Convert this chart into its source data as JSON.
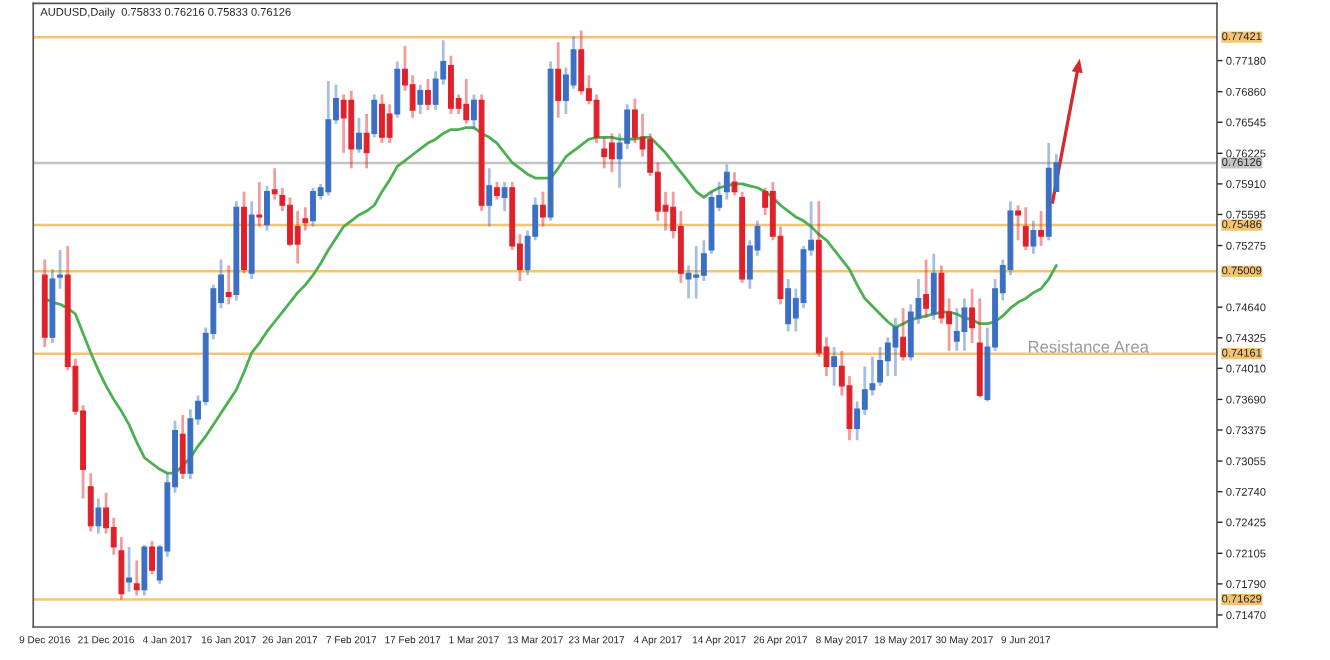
{
  "chart_data": {
    "type": "candlestick",
    "title": "AUDUSD,Daily  0.75833 0.76216 0.75833 0.76126",
    "annotations": [
      "Resistance Area"
    ],
    "categories": [
      "9 Dec 2016",
      null,
      null,
      null,
      null,
      null,
      null,
      null,
      "21 Dec 2016",
      null,
      null,
      null,
      null,
      null,
      null,
      null,
      "4 Jan 2017",
      null,
      null,
      null,
      null,
      null,
      null,
      null,
      "16 Jan 2017",
      null,
      null,
      null,
      null,
      null,
      null,
      null,
      "26 Jan 2017",
      null,
      null,
      null,
      null,
      null,
      null,
      null,
      "7 Feb 2017",
      null,
      null,
      null,
      null,
      null,
      null,
      null,
      "17 Feb 2017",
      null,
      null,
      null,
      null,
      null,
      null,
      null,
      "1 Mar 2017",
      null,
      null,
      null,
      null,
      null,
      null,
      null,
      "13 Mar 2017",
      null,
      null,
      null,
      null,
      null,
      null,
      null,
      "23 Mar 2017",
      null,
      null,
      null,
      null,
      null,
      null,
      null,
      "4 Apr 2017",
      null,
      null,
      null,
      null,
      null,
      null,
      null,
      "14 Apr 2017",
      null,
      null,
      null,
      null,
      null,
      null,
      null,
      "26 Apr 2017",
      null,
      null,
      null,
      null,
      null,
      null,
      null,
      "8 May 2017",
      null,
      null,
      null,
      null,
      null,
      null,
      null,
      "18 May 2017",
      null,
      null,
      null,
      null,
      null,
      null,
      null,
      "30 May 2017",
      null,
      null,
      null,
      null,
      null,
      null,
      null,
      "9 Jun 2017",
      null,
      null,
      null,
      null
    ],
    "ohlc": [
      [
        0.7497,
        0.7513,
        0.7423,
        0.7433
      ],
      [
        0.7433,
        0.7503,
        0.7427,
        0.7493
      ],
      [
        0.7495,
        0.7523,
        0.7483,
        0.7497
      ],
      [
        0.7497,
        0.7527,
        0.7399,
        0.7403
      ],
      [
        0.7403,
        0.7411,
        0.7353,
        0.7357
      ],
      [
        0.7357,
        0.7363,
        0.7267,
        0.7297
      ],
      [
        0.7279,
        0.7293,
        0.7233,
        0.7239
      ],
      [
        0.7239,
        0.7267,
        0.7231,
        0.7257
      ],
      [
        0.7257,
        0.7273,
        0.7231,
        0.7237
      ],
      [
        0.7237,
        0.7247,
        0.7209,
        0.7217
      ],
      [
        0.7213,
        0.7227,
        0.7163,
        0.7169
      ],
      [
        0.7181,
        0.7217,
        0.7171,
        0.7185
      ],
      [
        0.7179,
        0.7203,
        0.7167,
        0.7173
      ],
      [
        0.7173,
        0.7219,
        0.7167,
        0.7217
      ],
      [
        0.7217,
        0.7223,
        0.7189,
        0.7193
      ],
      [
        0.7183,
        0.7219,
        0.7179,
        0.7217
      ],
      [
        0.7213,
        0.7293,
        0.7207,
        0.7283
      ],
      [
        0.7279,
        0.7347,
        0.7273,
        0.7337
      ],
      [
        0.7333,
        0.7353,
        0.7287,
        0.7293
      ],
      [
        0.7293,
        0.7359,
        0.7287,
        0.7349
      ],
      [
        0.7349,
        0.7373,
        0.7343,
        0.7367
      ],
      [
        0.7367,
        0.7443,
        0.7363,
        0.7437
      ],
      [
        0.7437,
        0.7487,
        0.7431,
        0.7483
      ],
      [
        0.7469,
        0.7513,
        0.7463,
        0.7497
      ],
      [
        0.7479,
        0.7507,
        0.7467,
        0.7475
      ],
      [
        0.7477,
        0.7573,
        0.7471,
        0.7567
      ],
      [
        0.7567,
        0.7583,
        0.7499,
        0.7503
      ],
      [
        0.7499,
        0.7573,
        0.7493,
        0.7559
      ],
      [
        0.7559,
        0.7593,
        0.7547,
        0.7557
      ],
      [
        0.7549,
        0.7589,
        0.7543,
        0.7583
      ],
      [
        0.7585,
        0.7607,
        0.7575,
        0.7581
      ],
      [
        0.7579,
        0.7587,
        0.7563,
        0.7569
      ],
      [
        0.7569,
        0.7577,
        0.7527,
        0.7529
      ],
      [
        0.7547,
        0.7563,
        0.7509,
        0.7529
      ],
      [
        0.7555,
        0.7567,
        0.7543,
        0.7551
      ],
      [
        0.7553,
        0.7587,
        0.7547,
        0.7583
      ],
      [
        0.7579,
        0.7591,
        0.7575,
        0.7587
      ],
      [
        0.7583,
        0.7697,
        0.7579,
        0.7657
      ],
      [
        0.7657,
        0.7693,
        0.7653,
        0.7679
      ],
      [
        0.7677,
        0.7683,
        0.7623,
        0.7659
      ],
      [
        0.7677,
        0.7687,
        0.7607,
        0.7627
      ],
      [
        0.7627,
        0.7659,
        0.7623,
        0.7643
      ],
      [
        0.7643,
        0.7663,
        0.7607,
        0.7623
      ],
      [
        0.7643,
        0.7683,
        0.7639,
        0.7677
      ],
      [
        0.7673,
        0.7683,
        0.7633,
        0.7639
      ],
      [
        0.7663,
        0.7673,
        0.7633,
        0.7639
      ],
      [
        0.7663,
        0.7717,
        0.7659,
        0.7709
      ],
      [
        0.7709,
        0.7733,
        0.7687,
        0.7693
      ],
      [
        0.7693,
        0.7703,
        0.7659,
        0.7667
      ],
      [
        0.7673,
        0.7693,
        0.7663,
        0.7687
      ],
      [
        0.7687,
        0.7699,
        0.7667,
        0.7673
      ],
      [
        0.7673,
        0.7707,
        0.7667,
        0.7699
      ],
      [
        0.7699,
        0.7739,
        0.7693,
        0.7717
      ],
      [
        0.7713,
        0.7723,
        0.7663,
        0.7669
      ],
      [
        0.7679,
        0.7683,
        0.7663,
        0.7669
      ],
      [
        0.7673,
        0.7699,
        0.7653,
        0.7657
      ],
      [
        0.7657,
        0.7683,
        0.7647,
        0.7677
      ],
      [
        0.7677,
        0.7683,
        0.7563,
        0.7569
      ],
      [
        0.7569,
        0.7607,
        0.7547,
        0.7589
      ],
      [
        0.7587,
        0.7593,
        0.7575,
        0.7579
      ],
      [
        0.7577,
        0.7593,
        0.7563,
        0.7587
      ],
      [
        0.7587,
        0.7593,
        0.7523,
        0.7527
      ],
      [
        0.7529,
        0.7539,
        0.7491,
        0.7503
      ],
      [
        0.7503,
        0.7543,
        0.7497,
        0.7537
      ],
      [
        0.7537,
        0.7577,
        0.7533,
        0.7569
      ],
      [
        0.7569,
        0.7583,
        0.7547,
        0.7557
      ],
      [
        0.7557,
        0.7717,
        0.7553,
        0.7709
      ],
      [
        0.7709,
        0.7737,
        0.7659,
        0.7677
      ],
      [
        0.7677,
        0.7711,
        0.7663,
        0.7703
      ],
      [
        0.7693,
        0.7743,
        0.7689,
        0.7729
      ],
      [
        0.7729,
        0.7749,
        0.7683,
        0.7687
      ],
      [
        0.7689,
        0.7703,
        0.7673,
        0.7677
      ],
      [
        0.7677,
        0.7683,
        0.7633,
        0.7639
      ],
      [
        0.7627,
        0.7639,
        0.7607,
        0.7619
      ],
      [
        0.7633,
        0.7643,
        0.7603,
        0.7617
      ],
      [
        0.7617,
        0.7643,
        0.7587,
        0.7633
      ],
      [
        0.7633,
        0.7673,
        0.7627,
        0.7667
      ],
      [
        0.7667,
        0.7679,
        0.7633,
        0.7639
      ],
      [
        0.7639,
        0.7663,
        0.7619,
        0.7627
      ],
      [
        0.7637,
        0.7643,
        0.7599,
        0.7603
      ],
      [
        0.7603,
        0.7613,
        0.7553,
        0.7563
      ],
      [
        0.7569,
        0.7583,
        0.7543,
        0.7563
      ],
      [
        0.7567,
        0.7583,
        0.7535,
        0.7543
      ],
      [
        0.7547,
        0.7563,
        0.7489,
        0.7499
      ],
      [
        0.7493,
        0.7507,
        0.7473,
        0.7499
      ],
      [
        0.7495,
        0.7527,
        0.7473,
        0.7497
      ],
      [
        0.7497,
        0.7533,
        0.7491,
        0.7519
      ],
      [
        0.7523,
        0.7583,
        0.7519,
        0.7577
      ],
      [
        0.7567,
        0.7593,
        0.7563,
        0.7579
      ],
      [
        0.7583,
        0.7611,
        0.7575,
        0.7603
      ],
      [
        0.7593,
        0.7603,
        0.7579,
        0.7583
      ],
      [
        0.7577,
        0.7583,
        0.7489,
        0.7493
      ],
      [
        0.7493,
        0.7533,
        0.7483,
        0.7527
      ],
      [
        0.7523,
        0.7553,
        0.7517,
        0.7547
      ],
      [
        0.7583,
        0.7587,
        0.7559,
        0.7567
      ],
      [
        0.7583,
        0.7593,
        0.7533,
        0.7537
      ],
      [
        0.7537,
        0.7547,
        0.7467,
        0.7473
      ],
      [
        0.7447,
        0.7493,
        0.7439,
        0.7483
      ],
      [
        0.7453,
        0.7483,
        0.7439,
        0.7473
      ],
      [
        0.7469,
        0.7527,
        0.7463,
        0.7523
      ],
      [
        0.7523,
        0.7573,
        0.7517,
        0.7533
      ],
      [
        0.7533,
        0.7573,
        0.7413,
        0.7417
      ],
      [
        0.7423,
        0.7433,
        0.7393,
        0.7403
      ],
      [
        0.7403,
        0.7423,
        0.7383,
        0.7413
      ],
      [
        0.7403,
        0.7419,
        0.7373,
        0.7383
      ],
      [
        0.7383,
        0.7393,
        0.7327,
        0.7339
      ],
      [
        0.7339,
        0.7367,
        0.7327,
        0.7359
      ],
      [
        0.7359,
        0.7403,
        0.7353,
        0.7379
      ],
      [
        0.7379,
        0.7413,
        0.7373,
        0.7385
      ],
      [
        0.7387,
        0.7423,
        0.7383,
        0.7409
      ],
      [
        0.7409,
        0.7433,
        0.7393,
        0.7427
      ],
      [
        0.7423,
        0.7453,
        0.7393,
        0.7443
      ],
      [
        0.7433,
        0.7463,
        0.7409,
        0.7413
      ],
      [
        0.7413,
        0.7467,
        0.7409,
        0.7459
      ],
      [
        0.7453,
        0.7493,
        0.7447,
        0.7473
      ],
      [
        0.7477,
        0.7513,
        0.7453,
        0.7463
      ],
      [
        0.7457,
        0.7519,
        0.7451,
        0.7499
      ],
      [
        0.7499,
        0.7507,
        0.7447,
        0.7453
      ],
      [
        0.7459,
        0.7473,
        0.7419,
        0.7447
      ],
      [
        0.7429,
        0.7463,
        0.7419,
        0.7439
      ],
      [
        0.7439,
        0.7473,
        0.7419,
        0.7463
      ],
      [
        0.7463,
        0.7483,
        0.7427,
        0.7443
      ],
      [
        0.7427,
        0.7473,
        0.7371,
        0.7373
      ],
      [
        0.7369,
        0.7443,
        0.7367,
        0.7423
      ],
      [
        0.7423,
        0.7493,
        0.7419,
        0.7483
      ],
      [
        0.7479,
        0.7513,
        0.7471,
        0.7507
      ],
      [
        0.7503,
        0.7573,
        0.7497,
        0.7563
      ],
      [
        0.7563,
        0.7569,
        0.7533,
        0.7559
      ],
      [
        0.7547,
        0.7567,
        0.7523,
        0.7527
      ],
      [
        0.7527,
        0.7553,
        0.7519,
        0.7543
      ],
      [
        0.7543,
        0.7563,
        0.7527,
        0.7537
      ],
      [
        0.7537,
        0.7633,
        0.7533,
        0.7607
      ],
      [
        0.75833,
        0.76216,
        0.75833,
        0.76126
      ]
    ],
    "colors": [
      "#e0212a",
      "#3b6fc4",
      "#3b6fc4",
      "#e0212a",
      "#e0212a",
      "#e0212a",
      "#e0212a",
      "#3b6fc4",
      "#e0212a",
      "#e0212a",
      "#e0212a",
      "#3b6fc4",
      "#e0212a",
      "#3b6fc4",
      "#e0212a",
      "#3b6fc4",
      "#3b6fc4",
      "#3b6fc4",
      "#e0212a",
      "#3b6fc4",
      "#3b6fc4",
      "#3b6fc4",
      "#3b6fc4",
      "#3b6fc4",
      "#e0212a",
      "#3b6fc4",
      "#e0212a",
      "#3b6fc4",
      "#e0212a",
      "#3b6fc4",
      "#e0212a",
      "#e0212a",
      "#e0212a",
      "#e0212a",
      "#e0212a",
      "#3b6fc4",
      "#3b6fc4",
      "#3b6fc4",
      "#3b6fc4",
      "#e0212a",
      "#e0212a",
      "#3b6fc4",
      "#e0212a",
      "#3b6fc4",
      "#e0212a",
      "#e0212a",
      "#3b6fc4",
      "#e0212a",
      "#e0212a",
      "#3b6fc4",
      "#e0212a",
      "#3b6fc4",
      "#3b6fc4",
      "#e0212a",
      "#e0212a",
      "#e0212a",
      "#3b6fc4",
      "#e0212a",
      "#3b6fc4",
      "#e0212a",
      "#3b6fc4",
      "#e0212a",
      "#e0212a",
      "#3b6fc4",
      "#3b6fc4",
      "#e0212a",
      "#3b6fc4",
      "#e0212a",
      "#3b6fc4",
      "#3b6fc4",
      "#e0212a",
      "#e0212a",
      "#e0212a",
      "#e0212a",
      "#e0212a",
      "#3b6fc4",
      "#3b6fc4",
      "#e0212a",
      "#e0212a",
      "#e0212a",
      "#e0212a",
      "#e0212a",
      "#e0212a",
      "#e0212a",
      "#3b6fc4",
      "#3b6fc4",
      "#3b6fc4",
      "#3b6fc4",
      "#3b6fc4",
      "#3b6fc4",
      "#e0212a",
      "#e0212a",
      "#3b6fc4",
      "#3b6fc4",
      "#e0212a",
      "#e0212a",
      "#e0212a",
      "#3b6fc4",
      "#3b6fc4",
      "#3b6fc4",
      "#3b6fc4",
      "#e0212a",
      "#e0212a",
      "#3b6fc4",
      "#e0212a",
      "#e0212a",
      "#3b6fc4",
      "#3b6fc4",
      "#3b6fc4",
      "#3b6fc4",
      "#3b6fc4",
      "#3b6fc4",
      "#e0212a",
      "#3b6fc4",
      "#3b6fc4",
      "#e0212a",
      "#3b6fc4",
      "#e0212a",
      "#e0212a",
      "#3b6fc4",
      "#3b6fc4",
      "#e0212a",
      "#e0212a",
      "#3b6fc4",
      "#3b6fc4",
      "#3b6fc4",
      "#3b6fc4",
      "#e0212a",
      "#e0212a",
      "#3b6fc4",
      "#e0212a",
      "#3b6fc4",
      "#3b6fc4"
    ],
    "series": [
      {
        "type": "line",
        "color": "#4cb050",
        "values": [
          0.7473,
          0.7469,
          0.7467,
          0.7463,
          0.7457,
          0.7437,
          0.7417,
          0.7399,
          0.7383,
          0.7369,
          0.7357,
          0.7343,
          0.7325,
          0.7309,
          0.7303,
          0.7297,
          0.7293,
          0.7293,
          0.7301,
          0.7309,
          0.7321,
          0.7331,
          0.7343,
          0.7355,
          0.7367,
          0.7379,
          0.7397,
          0.7417,
          0.7427,
          0.7439,
          0.7449,
          0.7459,
          0.7469,
          0.7479,
          0.7487,
          0.7497,
          0.7509,
          0.7523,
          0.7535,
          0.7547,
          0.7553,
          0.7559,
          0.7563,
          0.7569,
          0.7583,
          0.7595,
          0.7609,
          0.7615,
          0.7621,
          0.7627,
          0.7633,
          0.7637,
          0.7643,
          0.7647,
          0.7647,
          0.7649,
          0.7649,
          0.7643,
          0.7639,
          0.7633,
          0.7623,
          0.7613,
          0.7607,
          0.7601,
          0.7597,
          0.7597,
          0.7597,
          0.7607,
          0.7619,
          0.7625,
          0.7631,
          0.7637,
          0.7639,
          0.7639,
          0.7639,
          0.7637,
          0.7637,
          0.7637,
          0.7639,
          0.7639,
          0.7631,
          0.7623,
          0.7613,
          0.7603,
          0.7593,
          0.7583,
          0.7577,
          0.7583,
          0.7587,
          0.7589,
          0.7591,
          0.7591,
          0.7589,
          0.7587,
          0.7583,
          0.7577,
          0.7569,
          0.7563,
          0.7557,
          0.7553,
          0.7547,
          0.7539,
          0.7533,
          0.7523,
          0.7513,
          0.7503,
          0.7487,
          0.7473,
          0.7465,
          0.7457,
          0.7449,
          0.7443,
          0.7447,
          0.7451,
          0.7453,
          0.7455,
          0.7457,
          0.7459,
          0.7459,
          0.7457,
          0.7453,
          0.7451,
          0.7447,
          0.7447,
          0.7449,
          0.7455,
          0.7463,
          0.7469,
          0.7473,
          0.7479,
          0.7483,
          0.7493,
          0.7507
        ]
      }
    ],
    "ref_lines": [
      {
        "axis": "y",
        "value": 0.77421,
        "label": "0.77421",
        "color": "#f3c472"
      },
      {
        "axis": "y",
        "value": 0.76126,
        "label": "0.76126",
        "color": "#c4c4c4"
      },
      {
        "axis": "y",
        "value": 0.75486,
        "label": "0.75486",
        "color": "#f3c472"
      },
      {
        "axis": "y",
        "value": 0.75009,
        "label": "0.75009",
        "color": "#f3c472"
      },
      {
        "axis": "y",
        "value": 0.74161,
        "label": "0.74161",
        "color": "#f3c472"
      },
      {
        "axis": "y",
        "value": 0.71629,
        "label": "0.71629",
        "color": "#f3c472"
      }
    ],
    "ylim": [
      0.71346,
      0.7777
    ],
    "yticks": [
      {
        "value": 0.7718,
        "label": "0.77180"
      },
      {
        "value": 0.7686,
        "label": "0.76860"
      },
      0.76545,
      0.76225,
      {
        "value": 0.7591,
        "label": "0.75910"
      },
      0.75595,
      0.75275,
      {
        "value": 0.7464,
        "label": "0.74640"
      },
      0.74325,
      {
        "value": 0.7401,
        "label": "0.74010"
      },
      {
        "value": 0.7369,
        "label": "0.73690"
      },
      0.73375,
      0.73055,
      {
        "value": 0.7274,
        "label": "0.72740"
      },
      0.72425,
      0.72105,
      {
        "value": 0.7179,
        "label": "0.71790"
      },
      {
        "value": 0.7147,
        "label": "0.71470"
      }
    ]
  }
}
